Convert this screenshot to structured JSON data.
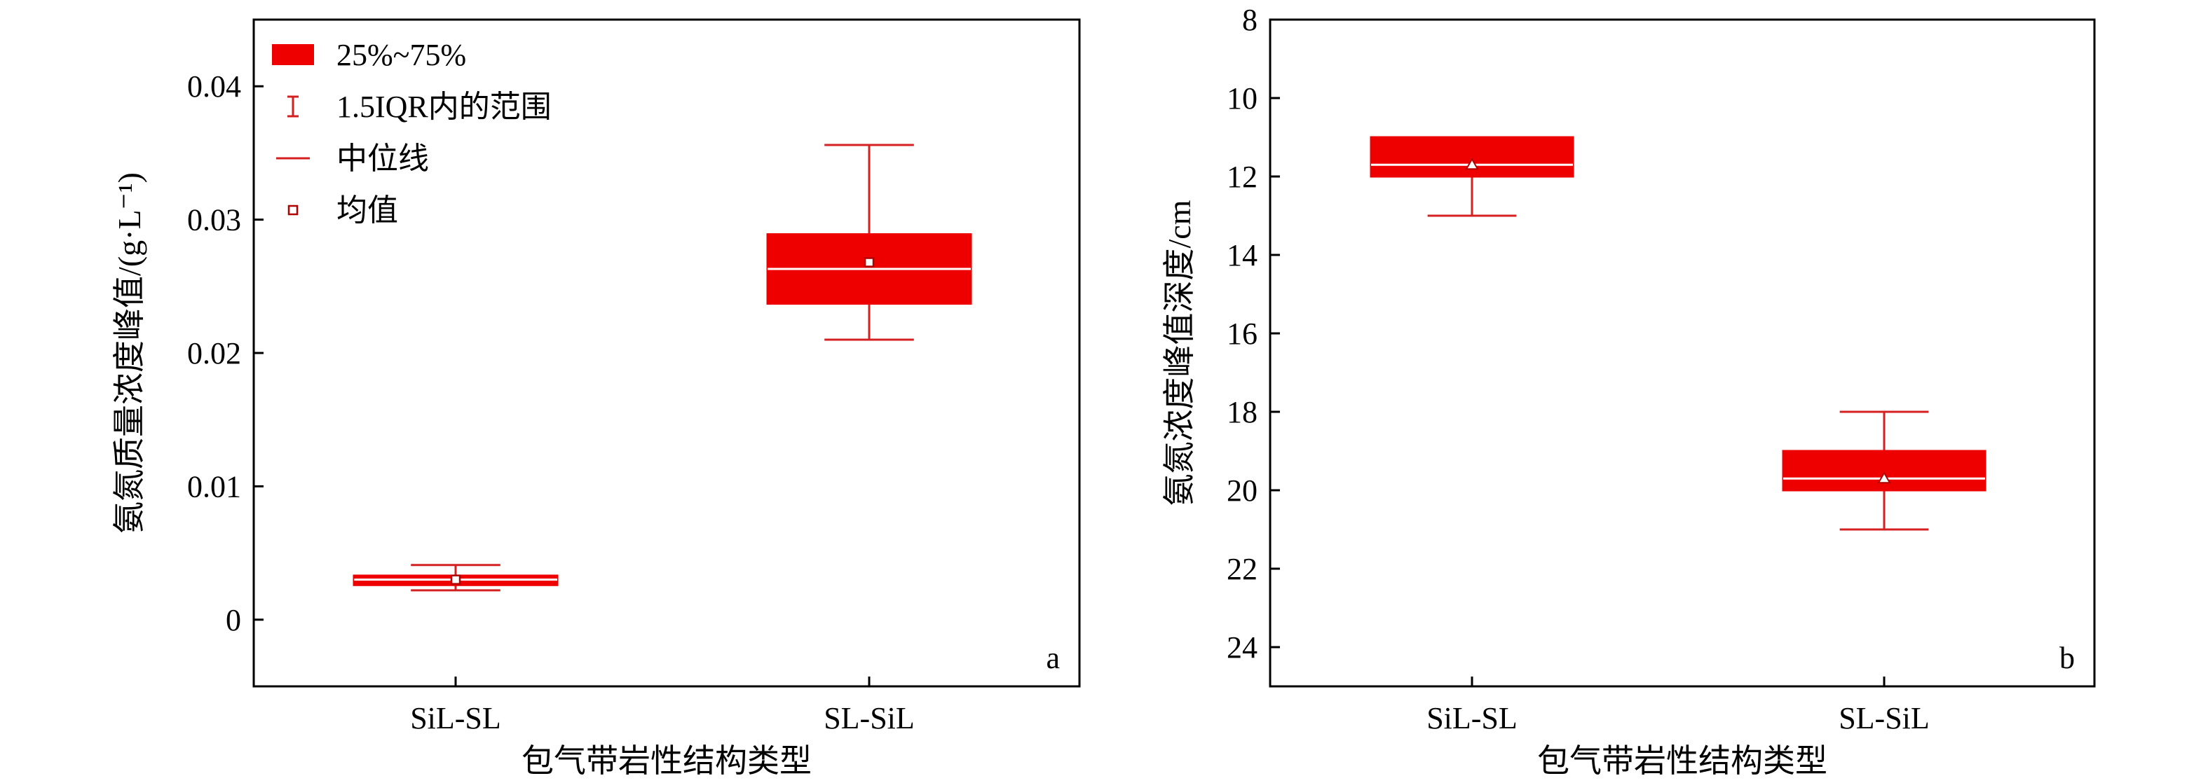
{
  "colors": {
    "box_fill": "#ee0000",
    "whisker": "#d42020",
    "median": "#ffffff",
    "axis": "#000000"
  },
  "legend": {
    "items": [
      {
        "label": "25%~75%",
        "icon": "filled-rect"
      },
      {
        "label": "1.5IQR内的范围",
        "icon": "whisker-bar"
      },
      {
        "label": "中位线",
        "icon": "line"
      },
      {
        "label": "均值",
        "icon": "open-square"
      }
    ]
  },
  "chart_data": [
    {
      "type": "box",
      "panel_label": "a",
      "xlabel": "包气带岩性结构类型",
      "ylabel": "氨氮质量浓度峰值/(g·L⁻¹)",
      "categories": [
        "SiL-SL",
        "SL-SiL"
      ],
      "ylim": [
        -0.005,
        0.045
      ],
      "y_inverted": false,
      "yticks": [
        0,
        0.01,
        0.02,
        0.03,
        0.04
      ],
      "ytick_labels": [
        "0",
        "0.01",
        "0.02",
        "0.03",
        "0.04"
      ],
      "mean_marker": "square",
      "boxes": [
        {
          "category": "SiL-SL",
          "whisker_low": 0.0022,
          "q1": 0.0026,
          "median": 0.003,
          "q3": 0.0033,
          "whisker_high": 0.0041,
          "mean": 0.003
        },
        {
          "category": "SL-SiL",
          "whisker_low": 0.021,
          "q1": 0.0237,
          "median": 0.0263,
          "q3": 0.0289,
          "whisker_high": 0.0356,
          "mean": 0.0268
        }
      ]
    },
    {
      "type": "box",
      "panel_label": "b",
      "xlabel": "包气带岩性结构类型",
      "ylabel": "氨氮浓度峰值深度/cm",
      "categories": [
        "SiL-SL",
        "SL-SiL"
      ],
      "ylim": [
        8,
        25
      ],
      "y_inverted": true,
      "yticks": [
        8,
        10,
        12,
        14,
        16,
        18,
        20,
        22,
        24
      ],
      "ytick_labels": [
        "8",
        "10",
        "12",
        "14",
        "16",
        "18",
        "20",
        "22",
        "24"
      ],
      "mean_marker": "triangle",
      "boxes": [
        {
          "category": "SiL-SL",
          "whisker_low": 11,
          "q1": 11,
          "median": 11.7,
          "q3": 12,
          "whisker_high": 13,
          "mean": 11.7
        },
        {
          "category": "SL-SiL",
          "whisker_low": 18,
          "q1": 19,
          "median": 19.7,
          "q3": 20,
          "whisker_high": 21,
          "mean": 19.7
        }
      ]
    }
  ]
}
